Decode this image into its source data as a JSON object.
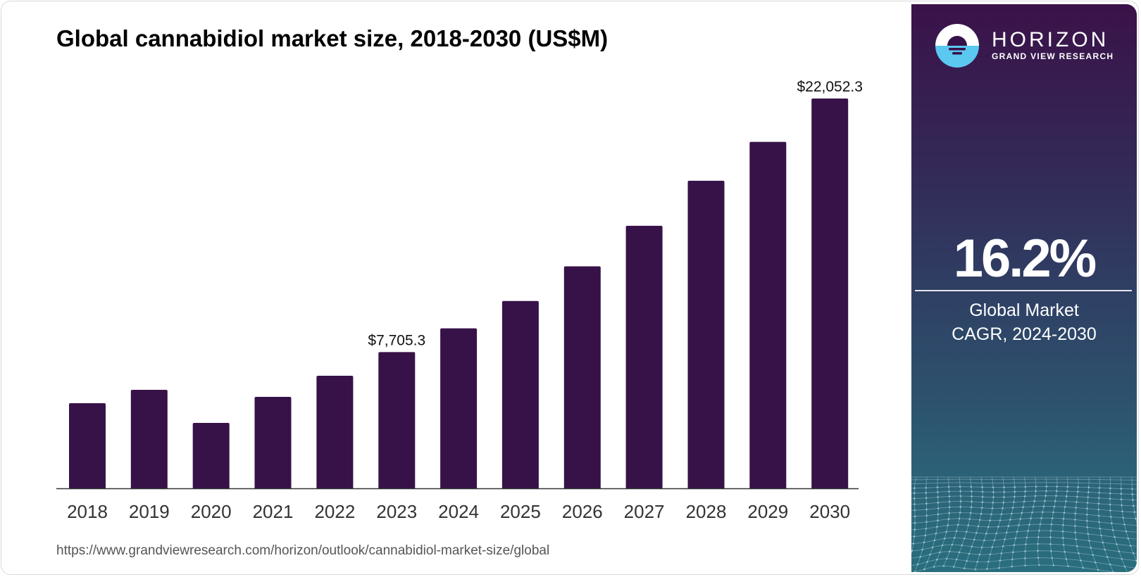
{
  "title": "Global cannabidiol market size, 2018-2030 (US$M)",
  "source_url": "https://www.grandviewresearch.com/horizon/outlook/cannabidiol-market-size/global",
  "colors": {
    "bar": "#371248",
    "axis": "#333333",
    "panel_top": "#3a1249",
    "panel_bottom": "#2a6e7e",
    "logo_blue": "#5bc8f0"
  },
  "brand": {
    "name": "HORIZON",
    "sub": "GRAND VIEW RESEARCH",
    "logo_icon": "horizon-sun-logo-icon"
  },
  "stat": {
    "value": "16.2%",
    "label_line1": "Global Market",
    "label_line2": "CAGR, 2024-2030"
  },
  "chart_data": {
    "type": "bar",
    "title": "Global cannabidiol market size, 2018-2030 (US$M)",
    "xlabel": "",
    "ylabel": "",
    "categories": [
      "2018",
      "2019",
      "2020",
      "2021",
      "2022",
      "2023",
      "2024",
      "2025",
      "2026",
      "2027",
      "2028",
      "2029",
      "2030"
    ],
    "values": [
      4817,
      5573,
      3702,
      5175,
      6370,
      7705.3,
      9050,
      10600,
      12560,
      14850,
      17400,
      19600,
      22052.3
    ],
    "data_labels": [
      {
        "index": 5,
        "text": "$7,705.3"
      },
      {
        "index": 12,
        "text": "$22,052.3"
      }
    ],
    "ylim": [
      0,
      22052.3
    ],
    "grid": false,
    "legend": "none"
  }
}
